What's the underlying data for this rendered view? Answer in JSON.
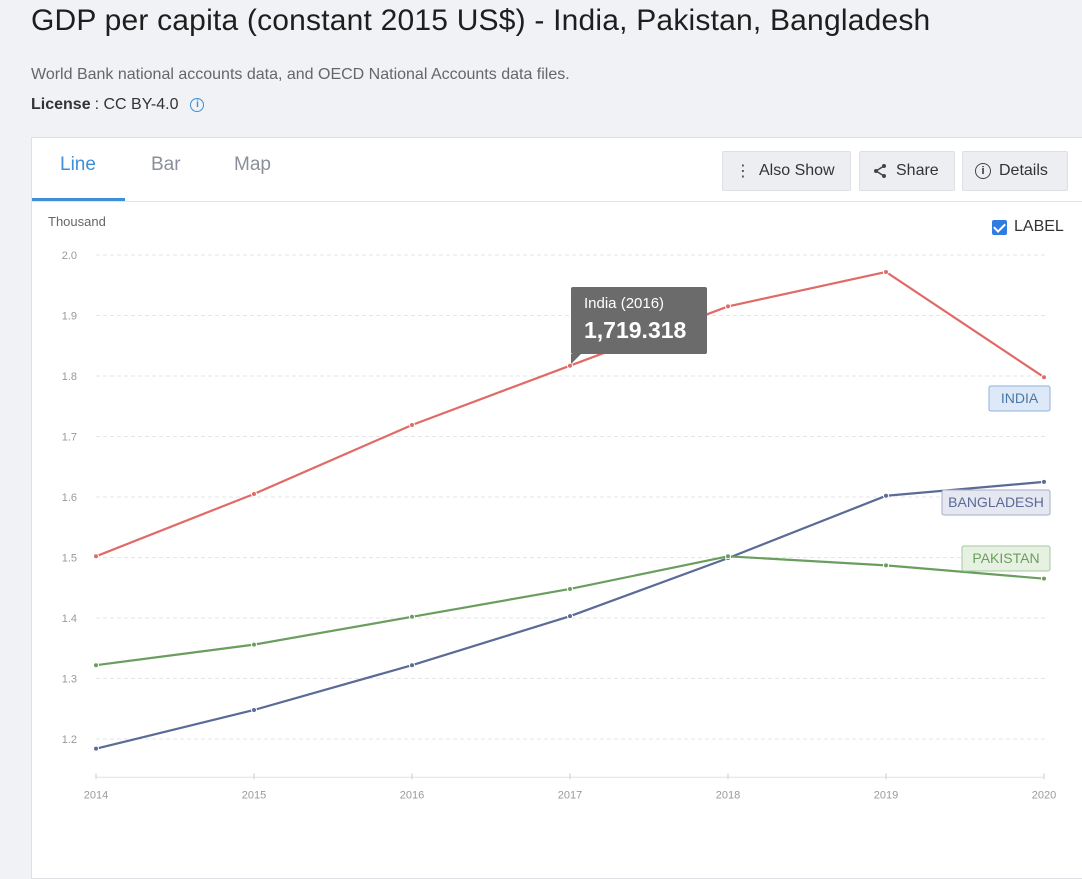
{
  "header": {
    "title": "GDP per capita (constant 2015 US$) - India, Pakistan, Bangladesh",
    "source": "World Bank national accounts data, and OECD National Accounts data files.",
    "license_label": "License",
    "license_value": ": CC BY-4.0"
  },
  "tabs": [
    {
      "label": "Line",
      "active": true
    },
    {
      "label": "Bar",
      "active": false
    },
    {
      "label": "Map",
      "active": false
    }
  ],
  "toolbar": {
    "also_show": "Also Show",
    "share": "Share",
    "details": "Details"
  },
  "label_toggle": {
    "label": "LABEL",
    "checked": true
  },
  "tooltip": {
    "title": "India (2016)",
    "value": "1,719.318"
  },
  "colors": {
    "india": "#e06a66",
    "bangladesh": "#5b6a96",
    "pakistan": "#6a9e5f",
    "accent": "#3d8fd9"
  },
  "chart_data": {
    "type": "line",
    "ylabel": "Thousand",
    "x": [
      2014,
      2015,
      2016,
      2017,
      2018,
      2019,
      2020
    ],
    "ylim": [
      1.15,
      2.0
    ],
    "yticks": [
      "1.2",
      "1.3",
      "1.4",
      "1.5",
      "1.6",
      "1.7",
      "1.8",
      "1.9",
      "2.0"
    ],
    "grid": true,
    "series": [
      {
        "name": "INDIA",
        "key": "india",
        "values": [
          1.502,
          1.605,
          1.719,
          1.817,
          1.915,
          1.972,
          1.798
        ]
      },
      {
        "name": "BANGLADESH",
        "key": "bangladesh",
        "values": [
          1.184,
          1.248,
          1.322,
          1.403,
          1.499,
          1.602,
          1.625
        ]
      },
      {
        "name": "PAKISTAN",
        "key": "pakistan",
        "values": [
          1.322,
          1.356,
          1.402,
          1.448,
          1.502,
          1.487,
          1.465
        ]
      }
    ]
  }
}
